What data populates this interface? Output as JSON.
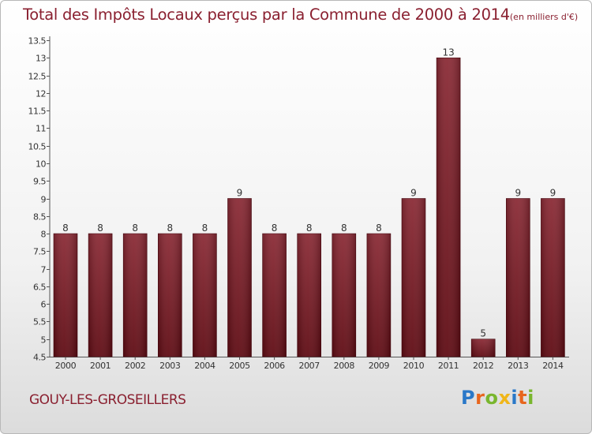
{
  "chart_data": {
    "type": "bar",
    "title": "Total des Impôts Locaux perçus par la Commune de 2000 à 2014",
    "title_unit": "(en milliers d'€)",
    "categories": [
      "2000",
      "2001",
      "2002",
      "2003",
      "2004",
      "2005",
      "2006",
      "2007",
      "2008",
      "2009",
      "2010",
      "2011",
      "2012",
      "2013",
      "2014"
    ],
    "values": [
      8,
      8,
      8,
      8,
      8,
      9,
      8,
      8,
      8,
      8,
      9,
      13,
      5,
      9,
      9
    ],
    "data_labels": [
      "8",
      "8",
      "8",
      "8",
      "8",
      "9",
      "8",
      "8",
      "8",
      "8",
      "9",
      "13",
      "5",
      "9",
      "9"
    ],
    "ylim": [
      4.5,
      13.5
    ],
    "yticks": [
      4.5,
      5,
      5.5,
      6,
      6.5,
      7,
      7.5,
      8,
      8.5,
      9,
      9.5,
      10,
      10.5,
      11,
      11.5,
      12,
      12.5,
      13,
      13.5
    ],
    "ytick_labels": [
      "4.5",
      "5",
      "5.5",
      "6",
      "6.5",
      "7",
      "7.5",
      "8",
      "8.5",
      "9",
      "9.5",
      "10",
      "10.5",
      "11",
      "11.5",
      "12",
      "12.5",
      "13",
      "13.5"
    ],
    "xlabel": "",
    "ylabel": "",
    "grid": false,
    "bar_color": "#7a1520"
  },
  "footer": {
    "commune": "GOUY-LES-GROSEILLERS",
    "logo": [
      "P",
      "r",
      "o",
      "x",
      "i",
      "t",
      "i"
    ]
  }
}
